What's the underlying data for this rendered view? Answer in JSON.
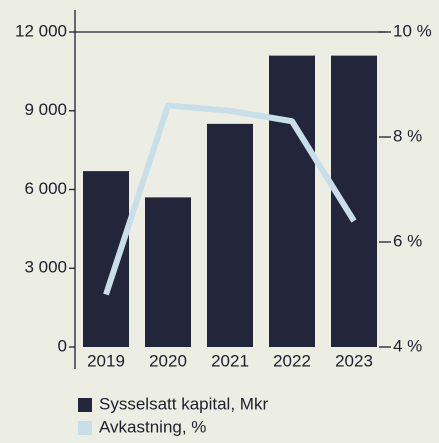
{
  "chart_data": {
    "type": "bar",
    "categories": [
      "2019",
      "2020",
      "2021",
      "2022",
      "2023"
    ],
    "series": [
      {
        "name": "Sysselsatt kapital, Mkr",
        "type": "bar",
        "color": "#23263a",
        "values": [
          6700,
          5700,
          8500,
          11100,
          11100
        ]
      },
      {
        "name": "Avkastning, %",
        "type": "line",
        "color": "#c8dfea",
        "axis": "y2",
        "values": [
          5.0,
          8.6,
          8.5,
          8.3,
          6.4
        ]
      }
    ],
    "ylim": [
      0,
      12000
    ],
    "yticks": [
      0,
      {
        "value": 3000,
        "label": "3 000"
      },
      {
        "value": 6000,
        "label": "6 000"
      },
      {
        "value": 9000,
        "label": "9 000"
      },
      {
        "value": 12000,
        "label": "12 000"
      }
    ],
    "y2lim": [
      4,
      10
    ],
    "y2ticks": [
      {
        "value": 4,
        "label": "4 %"
      },
      {
        "value": 6,
        "label": "6 %"
      },
      {
        "value": 8,
        "label": "8 %"
      },
      {
        "value": 10,
        "label": "10 %"
      }
    ],
    "legend": "bottom"
  }
}
